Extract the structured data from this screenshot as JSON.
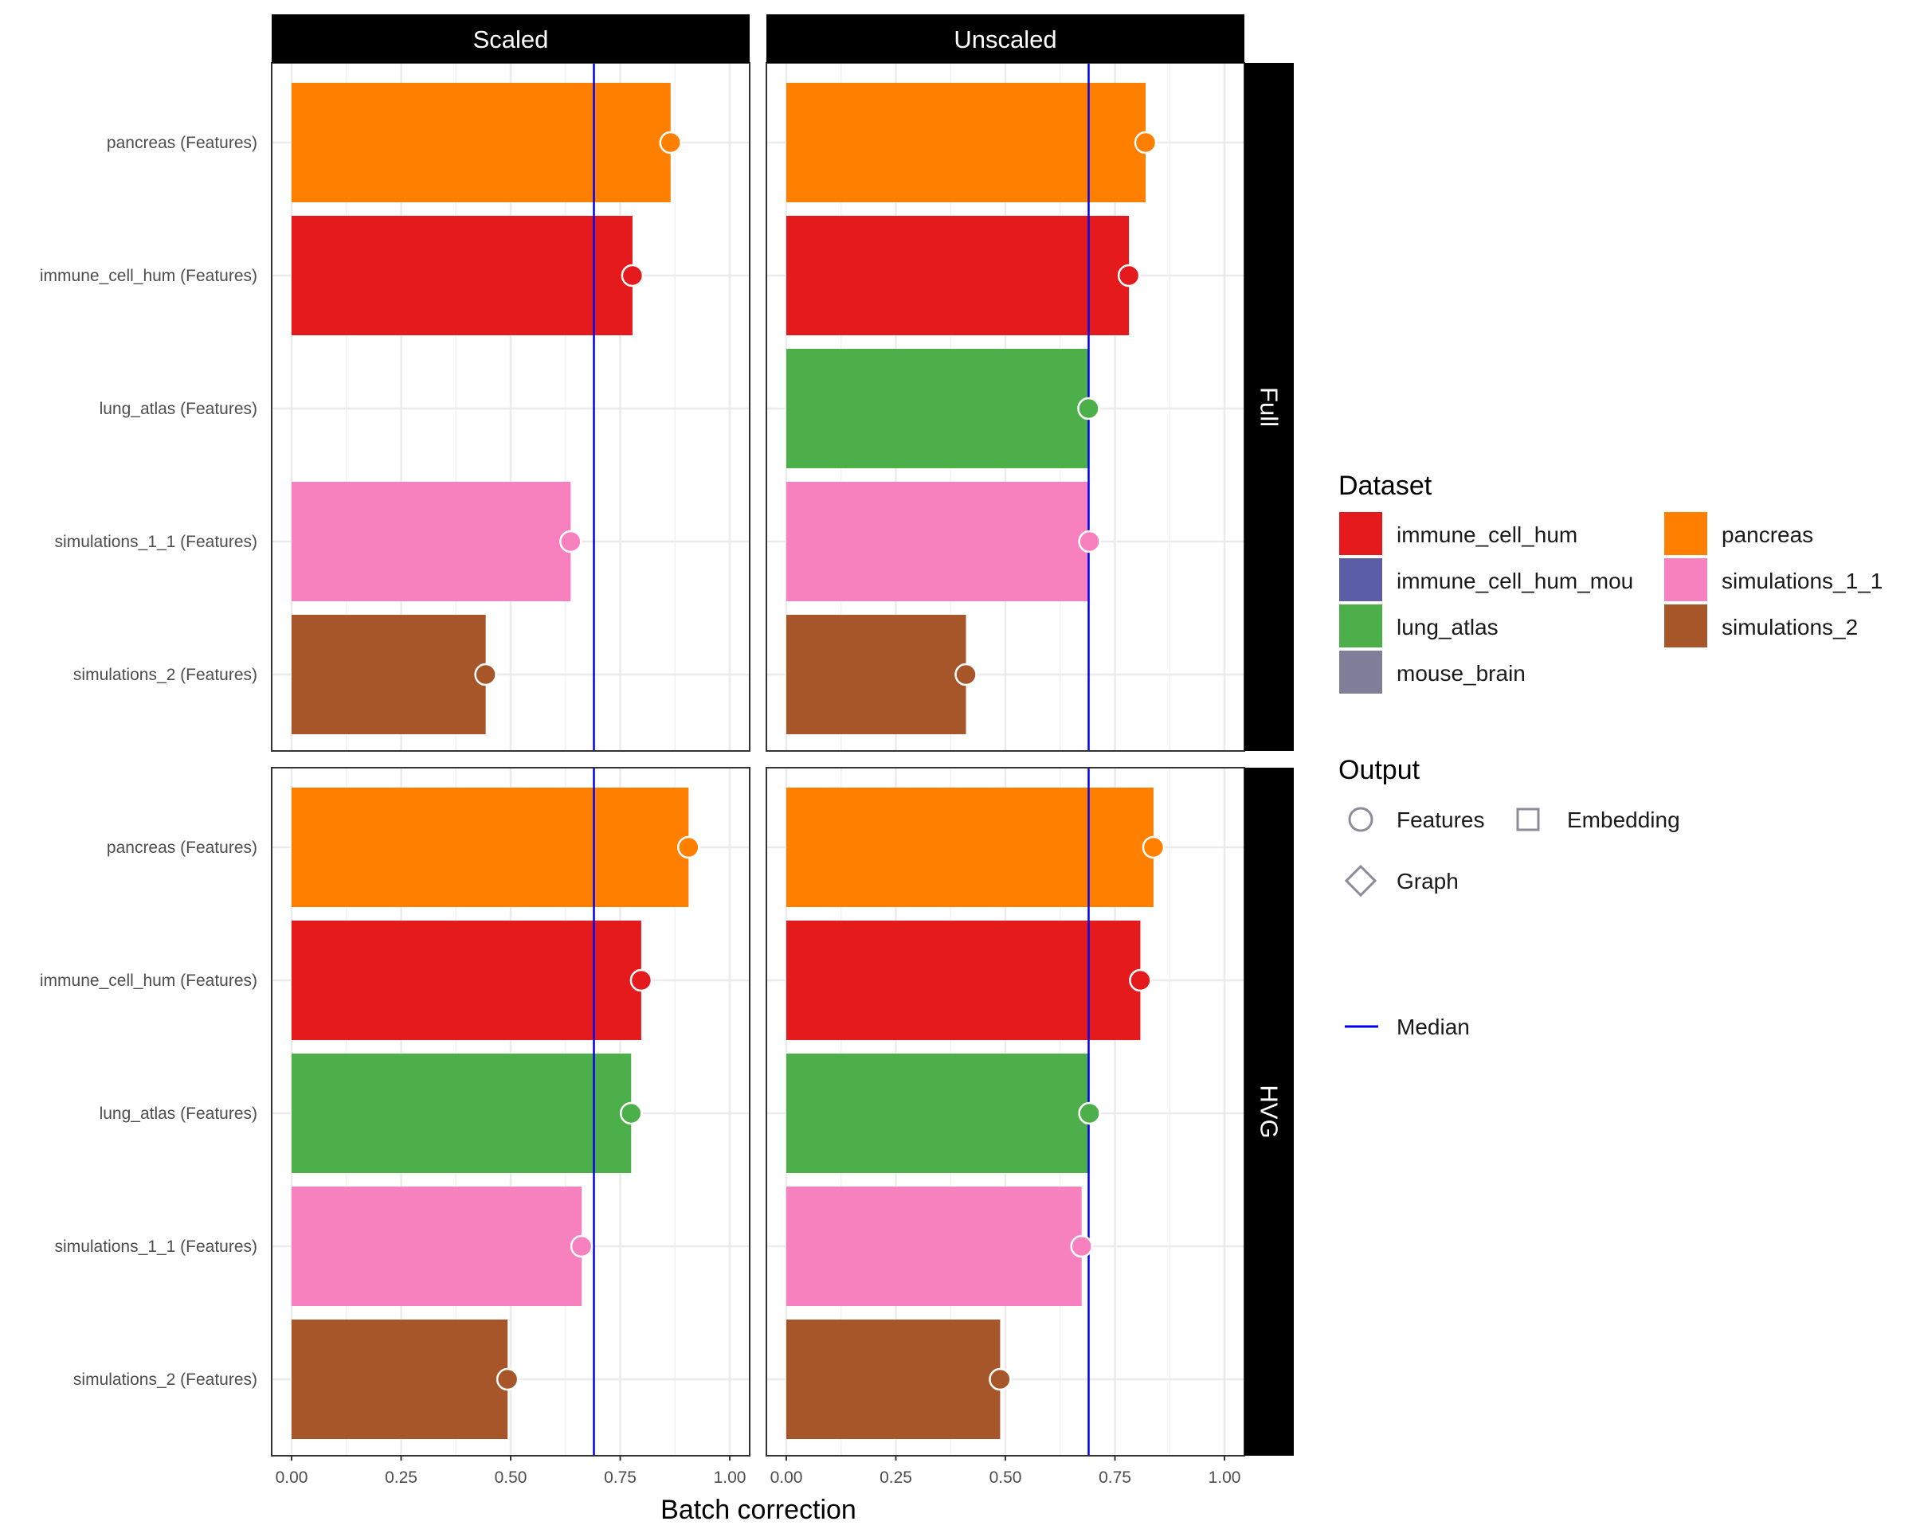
{
  "chart_data": {
    "type": "bar",
    "xlabel": "Batch correction",
    "xlim": [
      0,
      1
    ],
    "x_ticks": [
      "0.00",
      "0.25",
      "0.50",
      "0.75",
      "1.00"
    ],
    "x_tick_values": [
      0,
      0.25,
      0.5,
      0.75,
      1
    ],
    "grid": true,
    "column_facets": [
      "Scaled",
      "Unscaled"
    ],
    "row_facets": [
      "Full",
      "HVG"
    ],
    "categories": [
      "pancreas (Features)",
      "immune_cell_hum (Features)",
      "lung_atlas (Features)",
      "simulations_1_1 (Features)",
      "simulations_2 (Features)"
    ],
    "category_dataset": [
      "pancreas",
      "immune_cell_hum",
      "lung_atlas",
      "simulations_1_1",
      "simulations_2"
    ],
    "panels": [
      {
        "row": "Full",
        "col": "Scaled",
        "values": [
          0.865,
          0.778,
          null,
          0.637,
          0.443
        ],
        "median": 0.69
      },
      {
        "row": "Full",
        "col": "Unscaled",
        "values": [
          0.82,
          0.782,
          0.69,
          0.692,
          0.41
        ],
        "median": 0.69
      },
      {
        "row": "HVG",
        "col": "Scaled",
        "values": [
          0.906,
          0.798,
          0.775,
          0.662,
          0.493
        ],
        "median": 0.69
      },
      {
        "row": "HVG",
        "col": "Unscaled",
        "values": [
          0.838,
          0.808,
          0.692,
          0.674,
          0.488
        ],
        "median": 0.69
      }
    ],
    "legend": {
      "placement": "right",
      "dataset_title": "Dataset",
      "datasets": [
        {
          "name": "immune_cell_hum",
          "color": "#e41a1c"
        },
        {
          "name": "immune_cell_hum_mou",
          "color": "#5b5ea6"
        },
        {
          "name": "lung_atlas",
          "color": "#4daf4a"
        },
        {
          "name": "mouse_brain",
          "color": "#7f7f99"
        },
        {
          "name": "pancreas",
          "color": "#ff7f00"
        },
        {
          "name": "simulations_1_1",
          "color": "#f781bf"
        },
        {
          "name": "simulations_2",
          "color": "#a65628"
        }
      ],
      "output_title": "Output",
      "outputs": [
        "Features",
        "Embedding",
        "Graph"
      ],
      "output_shapes": [
        "circle",
        "square",
        "diamond"
      ],
      "median_label": "Median",
      "median_color": "#0000ee"
    }
  }
}
